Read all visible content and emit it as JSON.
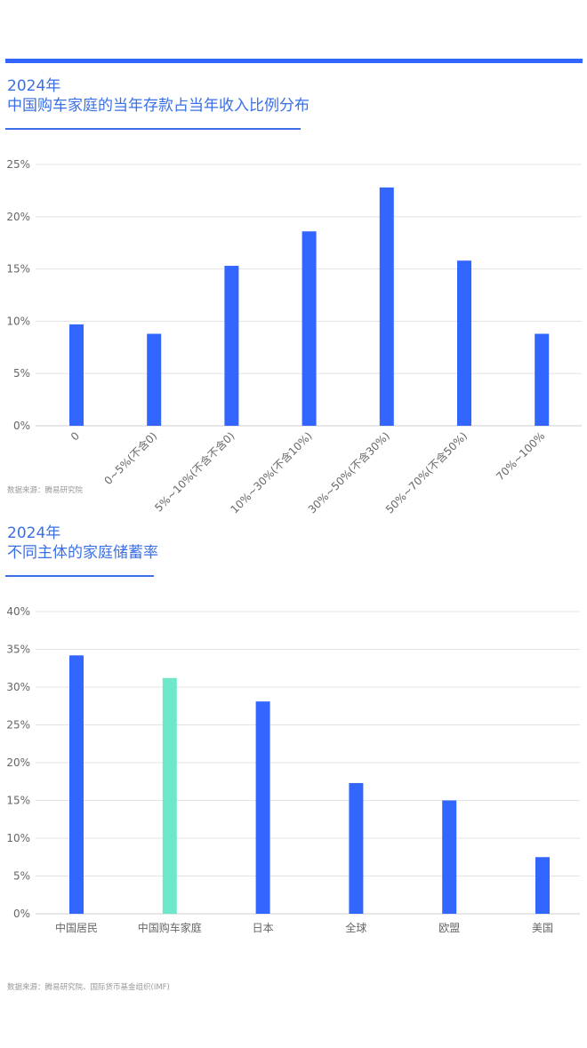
{
  "chart1": {
    "year": "2024年",
    "title": "中国购车家庭的当年存款占当年收入比例分布",
    "source": "数据来源：腾易研究院"
  },
  "chart2": {
    "year": "2024年",
    "title": "不同主体的家庭储蓄率",
    "source": "数据来源：腾易研究院、国际货币基金组织(IMF)"
  },
  "colors": {
    "accent": "#3366ff",
    "highlight": "#6de8c8",
    "grid": "#e3e3e3"
  },
  "chart_data": [
    {
      "type": "bar",
      "categories": [
        "0",
        "0~5%(不含0)",
        "5%~10%(不含不含0)",
        "10%~30%(不含10%)",
        "30%~50%(不含30%)",
        "50%~70%(不含50%)",
        "70%~100%"
      ],
      "values": [
        9.7,
        8.8,
        15.3,
        18.6,
        22.8,
        15.8,
        8.8
      ],
      "yticks": [
        "0%",
        "5%",
        "10%",
        "15%",
        "20%",
        "25%"
      ],
      "ylim": [
        0,
        25
      ],
      "grid": true
    },
    {
      "type": "bar",
      "categories": [
        "中国居民",
        "中国购车家庭",
        "日本",
        "全球",
        "欧盟",
        "美国"
      ],
      "values": [
        34.2,
        31.2,
        28.1,
        17.3,
        15.0,
        7.5
      ],
      "highlight_index": 1,
      "yticks": [
        "0%",
        "5%",
        "10%",
        "15%",
        "20%",
        "25%",
        "30%",
        "35%",
        "40%"
      ],
      "ylim": [
        0,
        40
      ],
      "grid": true
    }
  ]
}
